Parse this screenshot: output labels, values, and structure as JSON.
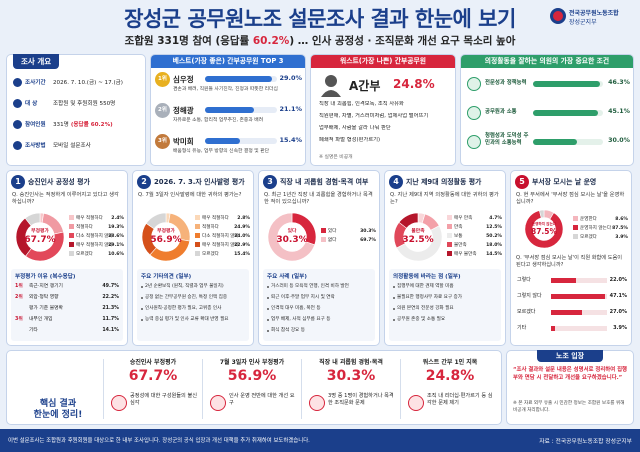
{
  "header": {
    "title": "장성군 공무원노조 설문조사 결과 한눈에 보기",
    "subtitle": {
      "before": "조합원 331명 참여 (응답률 ",
      "highlight": "60.2%",
      "after": ") … 인사 공정성 · 조직문화 개선 요구 목소리 높아"
    }
  },
  "logo": {
    "line1": "전국공무원노동조합",
    "line2": "장성군지부"
  },
  "overview": {
    "title": "조사 개요",
    "items": [
      {
        "label": "조사기간",
        "value": "2026. 7. 10.(금) ~ 17.(금)"
      },
      {
        "label": "대 상",
        "value": "조합원 및 후원회원 550명"
      },
      {
        "label": "참여인원",
        "value": "331명",
        "highlight": "(응답률 60.2%)"
      },
      {
        "label": "조사방법",
        "value": "모바일 설문조사"
      }
    ]
  },
  "best": {
    "title": "베스트(가장 좋은) 간부공무원 TOP 3",
    "color": "#2f6fd0",
    "items": [
      {
        "rank": "1위",
        "name": "심우정",
        "value": 29.0,
        "value_label": "29.0%",
        "desc": "겸손과 배려, 직원들 사기진작, 진정과 따뜻한 리더십"
      },
      {
        "rank": "2위",
        "name": "정해광",
        "value": 21.1,
        "value_label": "21.1%",
        "desc": "자유로운 소통, 합리적 업무추진, 존중과 배려"
      },
      {
        "rank": "3위",
        "name": "박미희",
        "value": 15.4,
        "value_label": "15.4%",
        "desc": "배움형식 유능, 업무 방향의 신속한 결정 및 판단"
      }
    ]
  },
  "worst": {
    "title": "워스트(가장 나쁜) 간부공무원",
    "name": "A간부",
    "value_label": "24.8%",
    "lines": [
      "직장 내 괴롭힘, 인격모독, 조직 사유화",
      "직원편애, 차별, 거스러미처럼, 업제사업 떨어뜨기",
      "업무배제, 사람을 갈라 나눠 판단",
      "폐쇄적 파벌 형성(편가르기)"
    ],
    "note": "※ 실명은 비공개"
  },
  "council": {
    "title": "의정활동을 잘하는 의원의 가장 중요한 조건",
    "color": "#2e9e6a",
    "items": [
      {
        "label": "전문성과 정책능력",
        "value": 46.3,
        "value_label": "46.3%"
      },
      {
        "label": "공무원과 소통",
        "value": 45.1,
        "value_label": "45.1%"
      },
      {
        "label": "청렴성과 도덕성 주민과의 소통능력",
        "value": 30.0,
        "value_label": "30.0%"
      }
    ]
  },
  "panels": [
    {
      "num": "1",
      "title": "승진인사 공정성 평가",
      "question": "Q. 승진인사는 적정하게 이루어지고 있다고 생각하십니까?",
      "donut": {
        "center_label": "부정평가",
        "center_value": "67.7%",
        "segments": [
          {
            "label": "매우 적절하다",
            "value": 2.4,
            "value_label": "2.4%",
            "color": "#f7c6c9"
          },
          {
            "label": "적절하다",
            "value": 19.3,
            "value_label": "19.3%",
            "color": "#f09aa2"
          },
          {
            "label": "다소 적절하지 않다",
            "value": 38.6,
            "value_label": "38.6%",
            "color": "#e2485a"
          },
          {
            "label": "매우 적절하지 않다",
            "value": 29.1,
            "value_label": "29.1%",
            "color": "#b5162b"
          },
          {
            "label": "모르겠다",
            "value": 10.6,
            "value_label": "10.6%",
            "color": "#d6d6d6"
          }
        ]
      },
      "sub": {
        "type": "table",
        "title": "부정평가 이유 (복수응답)",
        "items": [
          {
            "rank": "1위",
            "label": "측근·지연 챙기기",
            "value": "49.7%"
          },
          {
            "rank": "2위",
            "label": "외압·청탁 영향",
            "value": "22.2%"
          },
          {
            "label": "평가 기준 불명확",
            "value": "21.3%"
          },
          {
            "rank": "3위",
            "label": "내부인 개입",
            "value": "11.7%"
          },
          {
            "label": "기타",
            "value": "14.1%"
          }
        ]
      }
    },
    {
      "num": "2",
      "title": "2026. 7. 3.자 인사발령 평가",
      "question": "Q. 7월 3일자 인사발령에 대한 귀하의 평가는?",
      "donut": {
        "center_label": "부정평가",
        "center_value": "56.9%",
        "segments": [
          {
            "label": "매우 적절하다",
            "value": 2.8,
            "value_label": "2.8%",
            "color": "#fbd8b8"
          },
          {
            "label": "적절하다",
            "value": 24.9,
            "value_label": "24.9%",
            "color": "#f6b27a"
          },
          {
            "label": "다소 적절하지 않다",
            "value": 34.0,
            "value_label": "34.0%",
            "color": "#ef7d2e"
          },
          {
            "label": "매우 적절하지 않다",
            "value": 22.9,
            "value_label": "22.9%",
            "color": "#d5501a"
          },
          {
            "label": "모르겠다",
            "value": 15.4,
            "value_label": "15.4%",
            "color": "#d6d6d6"
          }
        ]
      },
      "sub": {
        "type": "list",
        "title": "주요 기타의견 (일부)",
        "items": [
          "2년 순환보직 (원칙, 직렬과 업무 불일치)",
          "공정 없는 간부공무원 승진, 특정 인맥 집중",
          "인사원칙·공정한 평가 필요, 고위층 인사",
          "능력 중심 평가 및 인사 교류 확대 반영 필요"
        ]
      }
    },
    {
      "num": "3",
      "title": "직장 내 괴롭힘 경험·목격 여부",
      "question": "Q. 최근 1년간 직장 내 괴롭힘을 경험하거나 목격한 적이 있으십니까?",
      "donut": {
        "center_label": "있다",
        "center_value": "30.3%",
        "segments": [
          {
            "label": "있다",
            "value": 30.3,
            "value_label": "30.3%",
            "color": "#d7263d"
          },
          {
            "label": "없다",
            "value": 69.7,
            "value_label": "69.7%",
            "color": "#f4c0c5"
          }
        ]
      },
      "sub": {
        "type": "list",
        "title": "주요 사례 (일부)",
        "items": [
          "거스러미 등 모욕적 언행, 인격 비하 발언",
          "퇴근 이후·주말 업무 지시 및 연락",
          "인격적 대우 미흡, 폭언 등",
          "업무 배제, 사적 심부름 요구 등",
          "회식 참석 강요 등"
        ]
      }
    },
    {
      "num": "4",
      "title": "지난 제9대 의정활동 평가",
      "question": "Q. 지난 제9대 지역 의정활동에 대한 귀하의 평가는?",
      "donut": {
        "center_label": "불만족",
        "center_value": "32.5%",
        "segments": [
          {
            "label": "매우 만족",
            "value": 4.7,
            "value_label": "4.7%",
            "color": "#f9d6d9"
          },
          {
            "label": "만족",
            "value": 12.5,
            "value_label": "12.5%",
            "color": "#f3a0a8"
          },
          {
            "label": "보통",
            "value": 50.2,
            "value_label": "50.2%",
            "color": "#ececec"
          },
          {
            "label": "불만족",
            "value": 18.0,
            "value_label": "18.0%",
            "color": "#e0485a"
          },
          {
            "label": "매우 불만족",
            "value": 14.5,
            "value_label": "14.5%",
            "color": "#b5162b"
          }
        ]
      },
      "sub": {
        "type": "list",
        "title": "의정활동에 바라는 점 (일부)",
        "items": [
          "집행부에 대한 견제 역할 미흡",
          "불필요한 행정사무 자료 요구 증가",
          "의원 본연의 전문성 강화 필요",
          "공무원 존중 및 소통 필요"
        ]
      }
    },
    {
      "num": "5",
      "title": "부서장 모시는 날 운영",
      "question": "Q. 현 부서에서 '부서장 점심 모시는 날'을 운영하십니까?",
      "donut": {
        "center_label": "운영하지 않는다",
        "center_value": "87.5%",
        "segments": [
          {
            "label": "운영한다",
            "value": 8.6,
            "value_label": "8.6%",
            "color": "#f4b6bd"
          },
          {
            "label": "운영하지 않는다",
            "value": 87.5,
            "value_label": "87.5%",
            "color": "#d7263d"
          },
          {
            "label": "모르겠다",
            "value": 3.9,
            "value_label": "3.9%",
            "color": "#d6d6d6"
          }
        ]
      },
      "sub": {
        "type": "bars",
        "question": "Q. '부서장 점심 모시는 날'이 직원 화합에 도움이 된다고 생각하십니까?",
        "color": "#d7263d",
        "items": [
          {
            "label": "그렇다",
            "value": 22.0,
            "value_label": "22.0%"
          },
          {
            "label": "그렇지 않다",
            "value": 47.1,
            "value_label": "47.1%"
          },
          {
            "label": "모르겠다",
            "value": 27.0,
            "value_label": "27.0%"
          },
          {
            "label": "기타",
            "value": 3.9,
            "value_label": "3.9%"
          }
        ]
      }
    }
  ],
  "summary": {
    "heading_lines": [
      "핵심 결과",
      "한눈에 정리!"
    ],
    "items": [
      {
        "title": "승진인사 부정평가",
        "value": "67.7%",
        "desc": "공정성에 대한 구성원들의 불신 심각"
      },
      {
        "title": "7월 3일자 인사 부정평가",
        "value": "56.9%",
        "desc": "인사 운영 전반에 대한 개선 요구"
      },
      {
        "title": "직장 내 괴롭힘 경험·목격",
        "value": "30.3%",
        "desc": "3명 중 1명이 경험하거나 목격한 조직문화 문제"
      },
      {
        "title": "워스트 간부 1인 지목",
        "value": "24.8%",
        "desc": "조직 내 리더십·편가르기 등 심각한 문제 제기"
      }
    ]
  },
  "union": {
    "title": "노조 입장",
    "quote": "“조사 결과와 설문 내용은 성명서로 정리하여 집행부와 면담 시 전달하고 개선을 요구하겠습니다.”",
    "note": "※ 본 자료 외부 유출 시 민감한 정보는 조합원 보호를 위해 비공개 처리합니다."
  },
  "footer": {
    "left": "이번 설문조사는 조합원과 후원회원을 대상으로 한 내부 조사입니다. 장성군의 공식 입장과 개선 대책을 추가 취재하여 보도하겠습니다.",
    "source": "자료 : 전국공무원노동조합 장성군지부"
  }
}
